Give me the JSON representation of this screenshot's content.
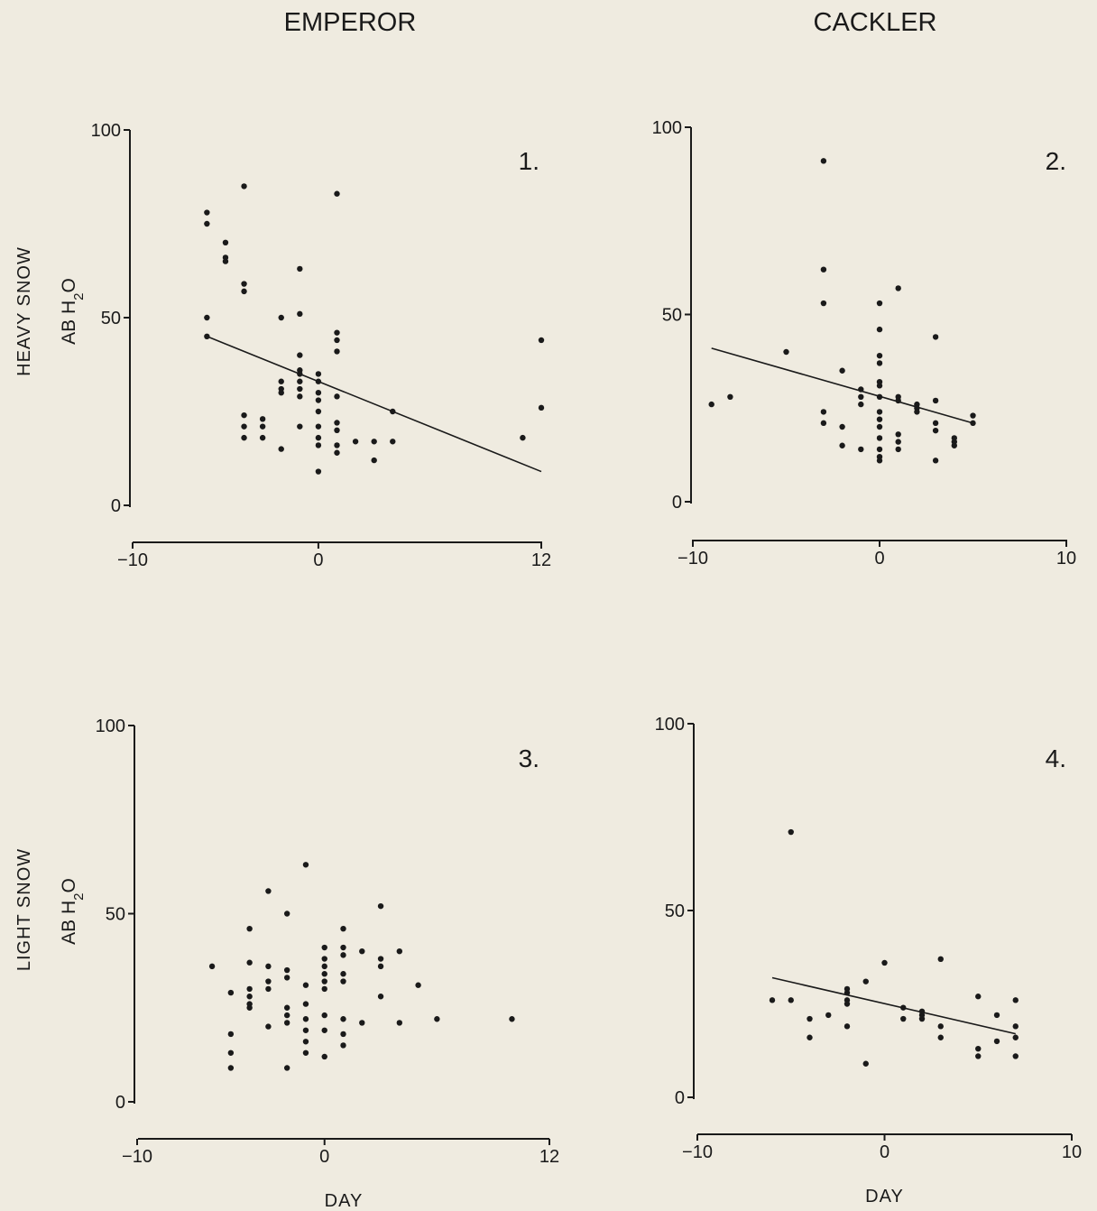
{
  "colors": {
    "background": "#efebe0",
    "ink": "#1a1a1a"
  },
  "column_titles": [
    "EMPEROR",
    "CACKLER"
  ],
  "row_titles": [
    "HEAVY SNOW",
    "LIGHT SNOW"
  ],
  "chart_data": [
    {
      "type": "scatter",
      "panel_label": "1.",
      "column": "EMPEROR",
      "row": "HEAVY SNOW",
      "ylabel": "AB H2O",
      "xlabel": "",
      "xlim": [
        -10,
        12
      ],
      "ylim": [
        0,
        100
      ],
      "xticks": [
        -10,
        0,
        12
      ],
      "yticks": [
        0,
        50,
        100
      ],
      "trendline": [
        [
          -6,
          45
        ],
        [
          12,
          9
        ]
      ],
      "points": [
        [
          -6,
          78
        ],
        [
          -6,
          75
        ],
        [
          -6,
          50
        ],
        [
          -6,
          45
        ],
        [
          -5,
          70
        ],
        [
          -5,
          66
        ],
        [
          -5,
          65
        ],
        [
          -4,
          85
        ],
        [
          -4,
          59
        ],
        [
          -4,
          57
        ],
        [
          -4,
          24
        ],
        [
          -4,
          21
        ],
        [
          -4,
          18
        ],
        [
          -3,
          23
        ],
        [
          -3,
          21
        ],
        [
          -3,
          18
        ],
        [
          -2,
          50
        ],
        [
          -2,
          33
        ],
        [
          -2,
          31
        ],
        [
          -2,
          30
        ],
        [
          -2,
          15
        ],
        [
          -1,
          63
        ],
        [
          -1,
          51
        ],
        [
          -1,
          40
        ],
        [
          -1,
          36
        ],
        [
          -1,
          35
        ],
        [
          -1,
          33
        ],
        [
          -1,
          31
        ],
        [
          -1,
          29
        ],
        [
          -1,
          21
        ],
        [
          0,
          35
        ],
        [
          0,
          33
        ],
        [
          0,
          30
        ],
        [
          0,
          28
        ],
        [
          0,
          25
        ],
        [
          0,
          21
        ],
        [
          0,
          18
        ],
        [
          0,
          16
        ],
        [
          0,
          9
        ],
        [
          1,
          83
        ],
        [
          1,
          46
        ],
        [
          1,
          44
        ],
        [
          1,
          41
        ],
        [
          1,
          29
        ],
        [
          1,
          22
        ],
        [
          1,
          20
        ],
        [
          1,
          16
        ],
        [
          1,
          14
        ],
        [
          2,
          17
        ],
        [
          3,
          17
        ],
        [
          3,
          12
        ],
        [
          4,
          25
        ],
        [
          4,
          17
        ],
        [
          11,
          18
        ],
        [
          12,
          44
        ],
        [
          12,
          26
        ]
      ]
    },
    {
      "type": "scatter",
      "panel_label": "2.",
      "column": "CACKLER",
      "row": "HEAVY SNOW",
      "ylabel": "",
      "xlabel": "",
      "xlim": [
        -10,
        10
      ],
      "ylim": [
        0,
        100
      ],
      "xticks": [
        -10,
        0,
        10
      ],
      "yticks": [
        0,
        50,
        100
      ],
      "trendline": [
        [
          -9,
          41
        ],
        [
          5,
          21
        ]
      ],
      "points": [
        [
          -9,
          26
        ],
        [
          -8,
          28
        ],
        [
          -5,
          40
        ],
        [
          -3,
          91
        ],
        [
          -3,
          62
        ],
        [
          -3,
          53
        ],
        [
          -3,
          24
        ],
        [
          -3,
          21
        ],
        [
          -2,
          35
        ],
        [
          -2,
          20
        ],
        [
          -2,
          15
        ],
        [
          -1,
          30
        ],
        [
          -1,
          28
        ],
        [
          -1,
          26
        ],
        [
          -1,
          14
        ],
        [
          0,
          53
        ],
        [
          0,
          46
        ],
        [
          0,
          39
        ],
        [
          0,
          37
        ],
        [
          0,
          32
        ],
        [
          0,
          31
        ],
        [
          0,
          28
        ],
        [
          0,
          24
        ],
        [
          0,
          22
        ],
        [
          0,
          20
        ],
        [
          0,
          17
        ],
        [
          0,
          14
        ],
        [
          0,
          12
        ],
        [
          0,
          11
        ],
        [
          1,
          57
        ],
        [
          1,
          28
        ],
        [
          1,
          27
        ],
        [
          1,
          18
        ],
        [
          1,
          16
        ],
        [
          1,
          14
        ],
        [
          2,
          26
        ],
        [
          2,
          25
        ],
        [
          2,
          24
        ],
        [
          3,
          44
        ],
        [
          3,
          27
        ],
        [
          3,
          21
        ],
        [
          3,
          19
        ],
        [
          3,
          11
        ],
        [
          4,
          17
        ],
        [
          4,
          16
        ],
        [
          4,
          15
        ],
        [
          5,
          23
        ],
        [
          5,
          21
        ]
      ]
    },
    {
      "type": "scatter",
      "panel_label": "3.",
      "column": "EMPEROR",
      "row": "LIGHT SNOW",
      "ylabel": "AB H2O",
      "xlabel": "DAY",
      "xlim": [
        -10,
        12
      ],
      "ylim": [
        0,
        100
      ],
      "xticks": [
        -10,
        0,
        12
      ],
      "yticks": [
        0,
        50,
        100
      ],
      "trendline": null,
      "points": [
        [
          -6,
          36
        ],
        [
          -5,
          29
        ],
        [
          -5,
          18
        ],
        [
          -5,
          13
        ],
        [
          -5,
          9
        ],
        [
          -4,
          46
        ],
        [
          -4,
          37
        ],
        [
          -4,
          30
        ],
        [
          -4,
          28
        ],
        [
          -4,
          26
        ],
        [
          -4,
          25
        ],
        [
          -3,
          56
        ],
        [
          -3,
          36
        ],
        [
          -3,
          32
        ],
        [
          -3,
          30
        ],
        [
          -3,
          20
        ],
        [
          -2,
          50
        ],
        [
          -2,
          35
        ],
        [
          -2,
          33
        ],
        [
          -2,
          25
        ],
        [
          -2,
          23
        ],
        [
          -2,
          21
        ],
        [
          -2,
          9
        ],
        [
          -1,
          63
        ],
        [
          -1,
          31
        ],
        [
          -1,
          26
        ],
        [
          -1,
          22
        ],
        [
          -1,
          19
        ],
        [
          -1,
          16
        ],
        [
          -1,
          13
        ],
        [
          0,
          41
        ],
        [
          0,
          38
        ],
        [
          0,
          36
        ],
        [
          0,
          34
        ],
        [
          0,
          32
        ],
        [
          0,
          30
        ],
        [
          0,
          23
        ],
        [
          0,
          19
        ],
        [
          0,
          12
        ],
        [
          1,
          46
        ],
        [
          1,
          41
        ],
        [
          1,
          39
        ],
        [
          1,
          34
        ],
        [
          1,
          32
        ],
        [
          1,
          22
        ],
        [
          1,
          18
        ],
        [
          1,
          15
        ],
        [
          2,
          40
        ],
        [
          2,
          21
        ],
        [
          3,
          52
        ],
        [
          3,
          38
        ],
        [
          3,
          36
        ],
        [
          3,
          28
        ],
        [
          4,
          40
        ],
        [
          4,
          21
        ],
        [
          5,
          31
        ],
        [
          6,
          22
        ],
        [
          10,
          22
        ]
      ]
    },
    {
      "type": "scatter",
      "panel_label": "4.",
      "column": "CACKLER",
      "row": "LIGHT SNOW",
      "ylabel": "",
      "xlabel": "DAY",
      "xlim": [
        -10,
        10
      ],
      "ylim": [
        0,
        100
      ],
      "xticks": [
        -10,
        0,
        10
      ],
      "yticks": [
        0,
        50,
        100
      ],
      "trendline": [
        [
          -6,
          32
        ],
        [
          7,
          17
        ]
      ],
      "points": [
        [
          -6,
          26
        ],
        [
          -5,
          71
        ],
        [
          -5,
          26
        ],
        [
          -4,
          21
        ],
        [
          -4,
          16
        ],
        [
          -3,
          22
        ],
        [
          -2,
          29
        ],
        [
          -2,
          28
        ],
        [
          -2,
          26
        ],
        [
          -2,
          25
        ],
        [
          -2,
          19
        ],
        [
          -1,
          31
        ],
        [
          -1,
          9
        ],
        [
          0,
          36
        ],
        [
          1,
          24
        ],
        [
          1,
          21
        ],
        [
          2,
          23
        ],
        [
          2,
          22
        ],
        [
          2,
          21
        ],
        [
          3,
          37
        ],
        [
          3,
          19
        ],
        [
          3,
          16
        ],
        [
          5,
          27
        ],
        [
          5,
          13
        ],
        [
          5,
          11
        ],
        [
          6,
          22
        ],
        [
          6,
          15
        ],
        [
          7,
          26
        ],
        [
          7,
          19
        ],
        [
          7,
          16
        ],
        [
          7,
          11
        ]
      ]
    }
  ]
}
